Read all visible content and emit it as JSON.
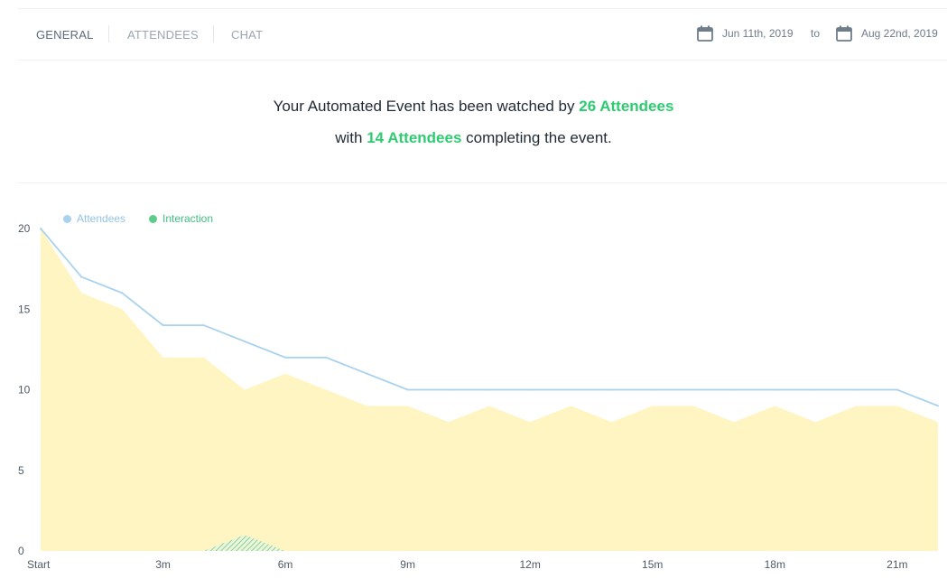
{
  "tabs": [
    {
      "label": "GENERAL",
      "active": true
    },
    {
      "label": "ATTENDEES",
      "active": false
    },
    {
      "label": "CHAT",
      "active": false
    }
  ],
  "date_range": {
    "from": "Jun 11th, 2019",
    "to_label": "to",
    "to": "Aug 22nd, 2019"
  },
  "summary": {
    "line1_prefix": "Your Automated Event has been watched by ",
    "line1_highlight": "26 Attendees",
    "line2_prefix": "with ",
    "line2_highlight": "14 Attendees",
    "line2_suffix": " completing the event."
  },
  "colors": {
    "accent": "#2ecc71",
    "attendees_line": "#a8d2ee",
    "interaction": "#5ecb8b",
    "area_fill": "#fff5c2"
  },
  "chart_data": {
    "type": "area",
    "legend": [
      {
        "name": "Attendees",
        "color": "#a8d2ee"
      },
      {
        "name": "Interaction",
        "color": "#5ecb8b"
      }
    ],
    "legend_position": "top-left",
    "x_ticks": [
      "Start",
      "3m",
      "6m",
      "9m",
      "12m",
      "15m",
      "18m",
      "21m"
    ],
    "x": [
      0,
      1,
      2,
      3,
      4,
      5,
      6,
      7,
      8,
      9,
      10,
      11,
      12,
      13,
      14,
      15,
      16,
      17,
      18,
      19,
      20,
      21,
      22
    ],
    "series": [
      {
        "name": "Attendees",
        "style": "line",
        "values": [
          20,
          17,
          16,
          14,
          14,
          13,
          12,
          12,
          11,
          10,
          10,
          10,
          10,
          10,
          10,
          10,
          10,
          10,
          10,
          10,
          10,
          10,
          9
        ]
      },
      {
        "style": "area",
        "values": [
          20,
          16,
          15,
          12,
          12,
          10,
          11,
          10,
          9,
          9,
          8,
          9,
          8,
          9,
          8,
          9,
          9,
          8,
          9,
          8,
          9,
          9,
          8
        ]
      },
      {
        "name": "Interaction",
        "style": "hatched-area",
        "values": [
          0,
          0,
          0,
          0,
          0,
          1,
          0,
          0,
          0,
          0,
          0,
          0,
          0,
          0,
          0,
          0,
          0,
          0,
          0,
          0,
          0,
          0,
          0
        ]
      }
    ],
    "y_ticks": [
      0,
      5,
      10,
      15,
      20
    ],
    "ylim": [
      0,
      20
    ],
    "xlim": [
      0,
      22
    ],
    "grid": false
  }
}
